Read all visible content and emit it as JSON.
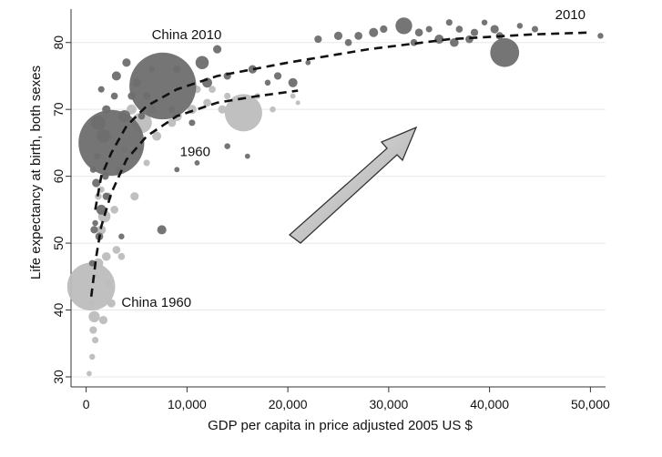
{
  "chart_data": {
    "type": "scatter",
    "title": "",
    "xlabel": "GDP per capita in price adjusted 2005 US $",
    "ylabel": "Life expectancy at birth, both sexes",
    "xlim": [
      -1500,
      51500
    ],
    "ylim": [
      28.5,
      85
    ],
    "x_ticks": [
      0,
      10000,
      20000,
      30000,
      40000,
      50000
    ],
    "x_tick_labels": [
      "0",
      "10,000",
      "20,000",
      "30,000",
      "40,000",
      "50,000"
    ],
    "y_ticks": [
      30,
      40,
      50,
      60,
      70,
      80
    ],
    "y_tick_labels": [
      "30",
      "40",
      "50",
      "60",
      "70",
      "80"
    ],
    "grid": "horizontal",
    "series": [
      {
        "name": "1960",
        "color": "#bdbdbd",
        "points": [
          [
            500,
            43.5,
            330
          ],
          [
            800,
            39,
            18
          ],
          [
            1200,
            47,
            14
          ],
          [
            1500,
            52,
            12
          ],
          [
            300,
            30.5,
            4
          ],
          [
            600,
            33,
            5
          ],
          [
            900,
            35.5,
            6
          ],
          [
            700,
            37,
            8
          ],
          [
            2500,
            41,
            10
          ],
          [
            2000,
            48,
            11
          ],
          [
            3000,
            49,
            9
          ],
          [
            3500,
            48,
            7
          ],
          [
            1800,
            54,
            22
          ],
          [
            2800,
            55,
            9
          ],
          [
            2200,
            57,
            8
          ],
          [
            1200,
            57,
            7
          ],
          [
            1500,
            58,
            6
          ],
          [
            4800,
            57,
            10
          ],
          [
            7000,
            66,
            12
          ],
          [
            9000,
            69,
            14
          ],
          [
            8500,
            68,
            10
          ],
          [
            10500,
            70,
            12
          ],
          [
            12000,
            71,
            9
          ],
          [
            13500,
            70,
            10
          ],
          [
            15600,
            69.5,
            200
          ],
          [
            11000,
            73,
            8
          ],
          [
            12500,
            73,
            7
          ],
          [
            14000,
            72,
            6
          ],
          [
            5500,
            68,
            60
          ],
          [
            4500,
            70,
            14
          ],
          [
            6500,
            70,
            10
          ],
          [
            17000,
            72,
            5
          ],
          [
            18500,
            70,
            5
          ],
          [
            20500,
            72,
            4
          ],
          [
            21000,
            71,
            3
          ],
          [
            5200,
            64,
            8
          ],
          [
            6000,
            62,
            6
          ],
          [
            3200,
            61,
            7
          ],
          [
            3800,
            64,
            6
          ],
          [
            2200,
            66,
            6
          ],
          [
            1700,
            38.5,
            10
          ],
          [
            1000,
            45,
            6
          ],
          [
            600,
            41,
            5
          ],
          [
            2200,
            44,
            6
          ]
        ]
      },
      {
        "name": "2010",
        "color": "#6e6e6e",
        "points": [
          [
            7600,
            73.5,
            640
          ],
          [
            2500,
            65,
            620
          ],
          [
            1200,
            68,
            30
          ],
          [
            1700,
            66,
            25
          ],
          [
            3800,
            69,
            20
          ],
          [
            2000,
            70,
            10
          ],
          [
            3000,
            75,
            12
          ],
          [
            4000,
            77,
            10
          ],
          [
            5000,
            74,
            10
          ],
          [
            6000,
            72,
            8
          ],
          [
            9000,
            76,
            8
          ],
          [
            11500,
            77,
            25
          ],
          [
            13000,
            79,
            10
          ],
          [
            12000,
            74,
            14
          ],
          [
            14000,
            75,
            8
          ],
          [
            16500,
            76,
            10
          ],
          [
            20500,
            74,
            12
          ],
          [
            19000,
            75,
            8
          ],
          [
            41500,
            78.5,
            120
          ],
          [
            31500,
            82.5,
            40
          ],
          [
            28500,
            81.5,
            12
          ],
          [
            27000,
            81,
            9
          ],
          [
            23000,
            80.5,
            8
          ],
          [
            25000,
            81,
            10
          ],
          [
            26000,
            80,
            7
          ],
          [
            29500,
            82,
            8
          ],
          [
            33000,
            81.5,
            9
          ],
          [
            35000,
            80.5,
            12
          ],
          [
            36500,
            80,
            11
          ],
          [
            38000,
            80.5,
            9
          ],
          [
            38500,
            81.5,
            8
          ],
          [
            40500,
            82,
            10
          ],
          [
            41000,
            81,
            8
          ],
          [
            37000,
            82,
            7
          ],
          [
            36000,
            83,
            6
          ],
          [
            39500,
            83,
            5
          ],
          [
            32500,
            80,
            7
          ],
          [
            34000,
            82,
            6
          ],
          [
            43000,
            82.5,
            5
          ],
          [
            44500,
            82,
            6
          ],
          [
            51000,
            81,
            5
          ],
          [
            1000,
            59,
            10
          ],
          [
            1500,
            55,
            14
          ],
          [
            800,
            52,
            8
          ],
          [
            1300,
            51,
            9
          ],
          [
            2000,
            57,
            8
          ],
          [
            7500,
            52,
            12
          ],
          [
            3500,
            51,
            5
          ],
          [
            600,
            47,
            6
          ],
          [
            900,
            53,
            5
          ],
          [
            4500,
            72,
            8
          ],
          [
            2800,
            72,
            7
          ],
          [
            1500,
            73,
            6
          ],
          [
            10500,
            68,
            6
          ],
          [
            14000,
            64.5,
            5
          ],
          [
            16000,
            63,
            4
          ],
          [
            11000,
            62,
            4
          ],
          [
            9000,
            61,
            4
          ],
          [
            18000,
            74,
            5
          ],
          [
            22000,
            77,
            4
          ],
          [
            8500,
            70,
            6
          ],
          [
            6500,
            76,
            5
          ],
          [
            5500,
            69,
            7
          ],
          [
            700,
            61,
            6
          ],
          [
            1100,
            63,
            6
          ],
          [
            1900,
            60,
            7
          ]
        ]
      }
    ],
    "trend_lines": [
      {
        "name": "2010",
        "points": [
          [
            900,
            55
          ],
          [
            1500,
            60
          ],
          [
            2500,
            63.5
          ],
          [
            4000,
            67.5
          ],
          [
            6000,
            70.5
          ],
          [
            9000,
            73
          ],
          [
            13000,
            75
          ],
          [
            20000,
            77
          ],
          [
            28000,
            79
          ],
          [
            36000,
            80.5
          ],
          [
            44000,
            81.2
          ],
          [
            50000,
            81.5
          ]
        ]
      },
      {
        "name": "1960",
        "points": [
          [
            500,
            42
          ],
          [
            1000,
            48
          ],
          [
            1500,
            52.5
          ],
          [
            2500,
            57.5
          ],
          [
            4000,
            62.5
          ],
          [
            6000,
            66
          ],
          [
            9000,
            69
          ],
          [
            13000,
            71
          ],
          [
            17000,
            72
          ],
          [
            21000,
            72.8
          ]
        ]
      }
    ],
    "annotations": [
      {
        "text": "China 2010",
        "x": 6500,
        "y": 80.5
      },
      {
        "text": "China 1960",
        "x": 3500,
        "y": 40.5
      },
      {
        "text": "1960",
        "x": 9300,
        "y": 63
      },
      {
        "text": "2010",
        "x": 46500,
        "y": 83.5
      }
    ]
  }
}
